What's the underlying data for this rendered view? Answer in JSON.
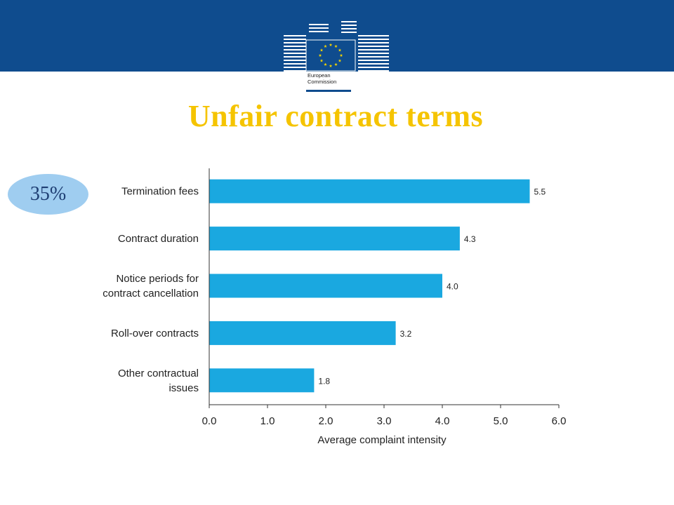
{
  "header": {
    "logo_alt": "European Commission logo",
    "logo_text_line1": "European",
    "logo_text_line2": "Commission"
  },
  "slide": {
    "title": "Unfair contract terms",
    "badge": "35%"
  },
  "colors": {
    "topbar": "#0f4c8e",
    "title": "#f5c400",
    "bar": "#1aa8e0",
    "badge": "#9fcdf0"
  },
  "chart_data": {
    "type": "bar",
    "orientation": "horizontal",
    "categories": [
      [
        "Termination fees"
      ],
      [
        "Contract duration"
      ],
      [
        "Notice periods for",
        "contract cancellation"
      ],
      [
        "Roll-over contracts"
      ],
      [
        "Other contractual",
        "issues"
      ]
    ],
    "values": [
      5.5,
      4.3,
      4.0,
      3.2,
      1.8
    ],
    "value_labels": [
      "5.5",
      "4.3",
      "4.0",
      "3.2",
      "1.8"
    ],
    "xlabel": "Average complaint intensity",
    "xlim": [
      0,
      6
    ],
    "xticks": [
      "0.0",
      "1.0",
      "2.0",
      "3.0",
      "4.0",
      "5.0",
      "6.0"
    ],
    "grid": false,
    "legend": "none"
  }
}
